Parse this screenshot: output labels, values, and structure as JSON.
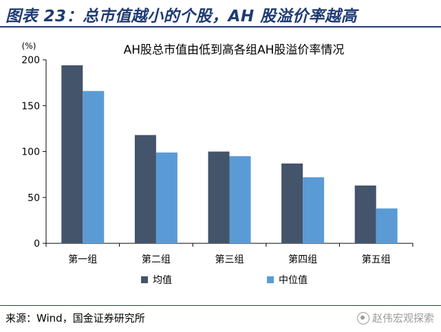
{
  "figure": {
    "title": "图表 23：总市值越小的个股，AH 股溢价率越高",
    "source": "来源：Wind，国金证券研究所",
    "watermark": "赵伟宏观探索"
  },
  "colors": {
    "title": "#1f3b73",
    "series_mean": "#44546a",
    "series_median": "#5b9bd5"
  },
  "chart_data": {
    "type": "bar",
    "title": "AH股总市值由低到高各组AH股溢价率情况",
    "ylabel": "(%)",
    "xlabel": "",
    "ylim": [
      0,
      200
    ],
    "yticks": [
      0,
      50,
      100,
      150,
      200
    ],
    "categories": [
      "第一组",
      "第二组",
      "第三组",
      "第四组",
      "第五组"
    ],
    "series": [
      {
        "name": "均值",
        "color": "#44546a",
        "values": [
          194,
          118,
          100,
          87,
          63
        ]
      },
      {
        "name": "中位值",
        "color": "#5b9bd5",
        "values": [
          166,
          99,
          95,
          72,
          38
        ]
      }
    ],
    "legend": "bottom",
    "grid": false
  }
}
